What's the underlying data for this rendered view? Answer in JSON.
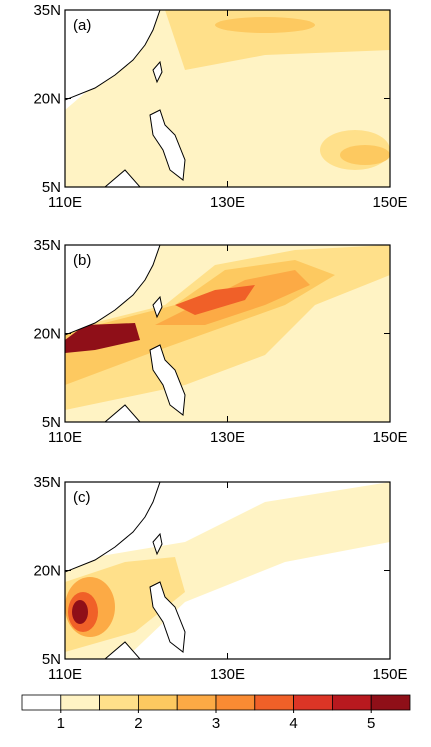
{
  "map": {
    "xlim": [
      110,
      150
    ],
    "xticks": [
      {
        "value": 110,
        "label": "110E"
      },
      {
        "value": 130,
        "label": "130E"
      },
      {
        "value": 150,
        "label": "150E"
      }
    ],
    "ylim": [
      5,
      35
    ],
    "yticks": [
      {
        "value": 5,
        "label": "5N"
      },
      {
        "value": 20,
        "label": "20N"
      },
      {
        "value": 35,
        "label": "35N"
      }
    ]
  },
  "panels": [
    {
      "label": "(a)"
    },
    {
      "label": "(b)"
    },
    {
      "label": "(c)"
    }
  ],
  "colorbar": {
    "lim": [
      0.5,
      5.5
    ],
    "ticks": [
      1,
      2,
      3,
      4,
      5
    ],
    "colors": [
      "#ffffff",
      "#fff3c4",
      "#ffe08a",
      "#fdc960",
      "#fcaa45",
      "#f98b33",
      "#f06028",
      "#dc3526",
      "#b8191f",
      "#8f0f18"
    ]
  }
}
